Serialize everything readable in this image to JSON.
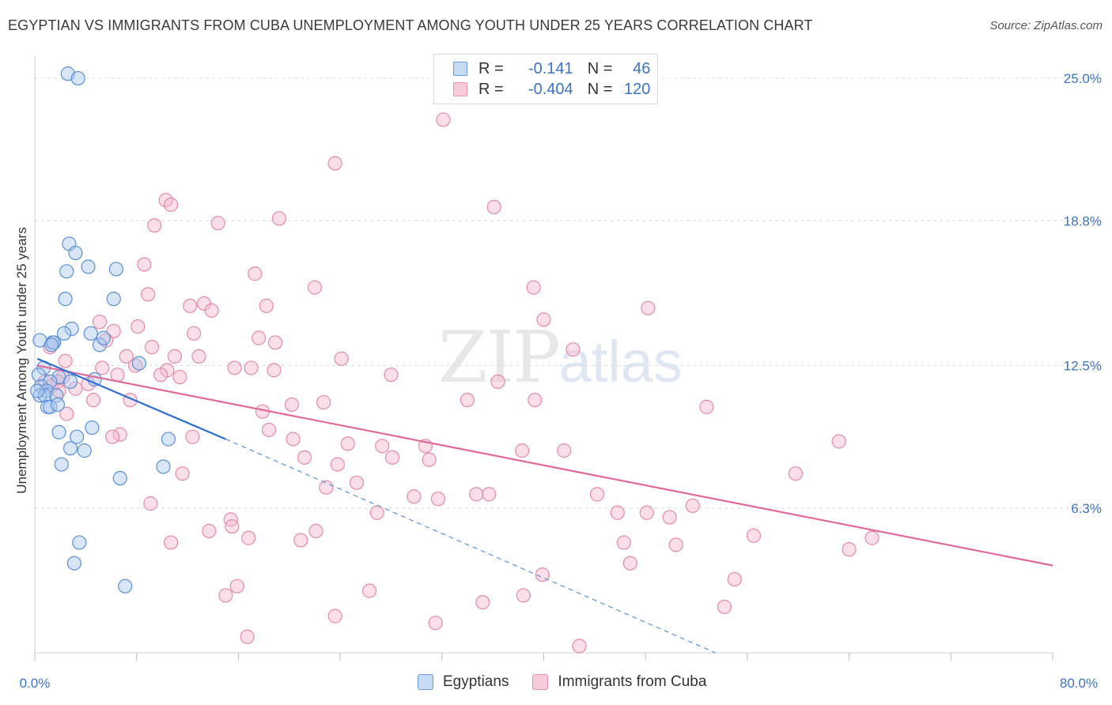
{
  "title": "EGYPTIAN VS IMMIGRANTS FROM CUBA UNEMPLOYMENT AMONG YOUTH UNDER 25 YEARS CORRELATION CHART",
  "source": "Source: ZipAtlas.com",
  "watermark": {
    "zip": "ZIP",
    "atlas": "atlas"
  },
  "legend": {
    "rows": [
      {
        "r_label": "R =",
        "r_value": "-0.141",
        "n_label": "N =",
        "n_value": "46"
      },
      {
        "r_label": "R =",
        "r_value": "-0.404",
        "n_label": "N =",
        "n_value": "120"
      }
    ]
  },
  "colors": {
    "blue_fill": "#a9c8f0",
    "blue_stroke": "#5b8fd6",
    "blue_line": "#2f6fd1",
    "pink_fill": "#f6b9cc",
    "pink_stroke": "#e58aa8",
    "pink_line": "#e0689a",
    "tick_label": "#3b74c4",
    "grid": "#dcdcdc"
  },
  "chart_data": {
    "type": "scatter",
    "title": "EGYPTIAN VS IMMIGRANTS FROM CUBA UNEMPLOYMENT AMONG YOUTH UNDER 25 YEARS CORRELATION CHART",
    "xlabel": "",
    "ylabel": "Unemployment Among Youth under 25 years",
    "xlim": [
      0,
      80
    ],
    "ylim": [
      0,
      26
    ],
    "x_tick_labels": [
      "0.0%",
      "80.0%"
    ],
    "y_ticks": [
      6.3,
      12.5,
      18.8,
      25.0
    ],
    "y_tick_labels": [
      "6.3%",
      "12.5%",
      "18.8%",
      "25.0%"
    ],
    "legend_position": "bottom-center",
    "series": [
      {
        "name": "Egyptians",
        "trend": {
          "x_start": 0.2,
          "y_start": 12.8,
          "x_solid_end": 15,
          "y_solid_end": 9.3,
          "x_dash_end": 53.5,
          "y_dash_end": 0
        },
        "points": [
          [
            2.6,
            25.2
          ],
          [
            3.4,
            25.0
          ],
          [
            2.7,
            17.8
          ],
          [
            3.2,
            17.4
          ],
          [
            2.5,
            16.6
          ],
          [
            4.2,
            16.8
          ],
          [
            6.4,
            16.7
          ],
          [
            2.4,
            15.4
          ],
          [
            6.2,
            15.4
          ],
          [
            2.9,
            14.1
          ],
          [
            2.3,
            13.9
          ],
          [
            4.4,
            13.9
          ],
          [
            0.4,
            13.6
          ],
          [
            1.4,
            13.5
          ],
          [
            1.5,
            13.5
          ],
          [
            1.3,
            13.4
          ],
          [
            5.1,
            13.4
          ],
          [
            5.4,
            13.7
          ],
          [
            8.2,
            12.6
          ],
          [
            0.7,
            12.4
          ],
          [
            0.3,
            12.1
          ],
          [
            1.9,
            12.0
          ],
          [
            1.2,
            11.8
          ],
          [
            2.8,
            11.8
          ],
          [
            4.7,
            11.9
          ],
          [
            0.5,
            11.6
          ],
          [
            0.9,
            11.4
          ],
          [
            0.4,
            11.2
          ],
          [
            0.8,
            11.2
          ],
          [
            1.7,
            11.2
          ],
          [
            0.2,
            11.4
          ],
          [
            1.0,
            10.7
          ],
          [
            1.2,
            10.7
          ],
          [
            1.8,
            10.8
          ],
          [
            1.9,
            9.6
          ],
          [
            4.5,
            9.8
          ],
          [
            3.3,
            9.4
          ],
          [
            10.5,
            9.3
          ],
          [
            2.8,
            8.9
          ],
          [
            3.9,
            8.8
          ],
          [
            2.1,
            8.2
          ],
          [
            10.1,
            8.1
          ],
          [
            6.7,
            7.6
          ],
          [
            3.5,
            4.8
          ],
          [
            3.1,
            3.9
          ],
          [
            7.1,
            2.9
          ]
        ]
      },
      {
        "name": "Immigrants from Cuba",
        "trend": {
          "x_start": 0.2,
          "y_start": 12.5,
          "x_end": 80,
          "y_end": 3.8
        },
        "points": [
          [
            32.1,
            23.2
          ],
          [
            23.6,
            21.3
          ],
          [
            10.3,
            19.7
          ],
          [
            10.7,
            19.5
          ],
          [
            36.1,
            19.4
          ],
          [
            9.4,
            18.6
          ],
          [
            14.4,
            18.7
          ],
          [
            19.2,
            18.9
          ],
          [
            8.6,
            16.9
          ],
          [
            17.3,
            16.5
          ],
          [
            22.0,
            15.9
          ],
          [
            39.2,
            15.9
          ],
          [
            48.2,
            15.0
          ],
          [
            12.2,
            15.1
          ],
          [
            13.3,
            15.2
          ],
          [
            13.9,
            14.9
          ],
          [
            18.2,
            15.1
          ],
          [
            40.0,
            14.5
          ],
          [
            5.1,
            14.4
          ],
          [
            8.1,
            14.2
          ],
          [
            6.2,
            14.0
          ],
          [
            12.5,
            13.9
          ],
          [
            5.6,
            13.6
          ],
          [
            17.6,
            13.7
          ],
          [
            18.9,
            13.5
          ],
          [
            1.2,
            13.3
          ],
          [
            9.2,
            13.3
          ],
          [
            42.3,
            13.2
          ],
          [
            7.2,
            12.9
          ],
          [
            11.0,
            12.9
          ],
          [
            12.9,
            12.9
          ],
          [
            24.1,
            12.8
          ],
          [
            2.4,
            12.7
          ],
          [
            10.4,
            12.3
          ],
          [
            17.0,
            12.4
          ],
          [
            18.8,
            12.3
          ],
          [
            7.9,
            12.5
          ],
          [
            5.3,
            12.4
          ],
          [
            6.5,
            12.1
          ],
          [
            9.9,
            12.1
          ],
          [
            11.4,
            12.0
          ],
          [
            15.7,
            12.4
          ],
          [
            28.0,
            12.1
          ],
          [
            2.2,
            12.0
          ],
          [
            1.8,
            11.8
          ],
          [
            0.8,
            11.8
          ],
          [
            1.3,
            11.6
          ],
          [
            4.2,
            11.7
          ],
          [
            36.4,
            11.8
          ],
          [
            1.9,
            11.4
          ],
          [
            3.2,
            11.5
          ],
          [
            4.6,
            11.0
          ],
          [
            7.5,
            11.0
          ],
          [
            22.7,
            10.9
          ],
          [
            34.0,
            11.0
          ],
          [
            39.3,
            11.0
          ],
          [
            20.2,
            10.8
          ],
          [
            17.9,
            10.5
          ],
          [
            52.8,
            10.7
          ],
          [
            2.5,
            10.4
          ],
          [
            18.4,
            9.7
          ],
          [
            6.7,
            9.5
          ],
          [
            6.1,
            9.4
          ],
          [
            12.4,
            9.4
          ],
          [
            20.3,
            9.3
          ],
          [
            24.6,
            9.1
          ],
          [
            27.3,
            9.0
          ],
          [
            30.7,
            9.0
          ],
          [
            38.3,
            8.8
          ],
          [
            41.6,
            8.8
          ],
          [
            63.2,
            9.2
          ],
          [
            21.2,
            8.5
          ],
          [
            28.1,
            8.5
          ],
          [
            31.0,
            8.4
          ],
          [
            23.8,
            8.2
          ],
          [
            11.6,
            7.8
          ],
          [
            59.8,
            7.8
          ],
          [
            25.3,
            7.4
          ],
          [
            22.9,
            7.2
          ],
          [
            34.7,
            6.9
          ],
          [
            35.7,
            6.9
          ],
          [
            29.8,
            6.8
          ],
          [
            31.7,
            6.7
          ],
          [
            44.2,
            6.9
          ],
          [
            9.1,
            6.5
          ],
          [
            51.7,
            6.4
          ],
          [
            26.9,
            6.1
          ],
          [
            45.8,
            6.1
          ],
          [
            48.1,
            6.1
          ],
          [
            49.9,
            5.9
          ],
          [
            15.4,
            5.8
          ],
          [
            15.5,
            5.5
          ],
          [
            13.7,
            5.3
          ],
          [
            22.1,
            5.3
          ],
          [
            56.5,
            5.1
          ],
          [
            65.8,
            5.0
          ],
          [
            16.8,
            5.0
          ],
          [
            20.9,
            4.9
          ],
          [
            10.7,
            4.8
          ],
          [
            46.3,
            4.8
          ],
          [
            50.4,
            4.7
          ],
          [
            64.0,
            4.5
          ],
          [
            46.8,
            3.9
          ],
          [
            39.9,
            3.4
          ],
          [
            55.0,
            3.2
          ],
          [
            15.9,
            2.9
          ],
          [
            26.3,
            2.7
          ],
          [
            15.0,
            2.5
          ],
          [
            38.4,
            2.5
          ],
          [
            35.2,
            2.2
          ],
          [
            54.2,
            2.0
          ],
          [
            23.6,
            1.6
          ],
          [
            31.5,
            1.3
          ],
          [
            16.7,
            0.7
          ],
          [
            42.8,
            0.3
          ],
          [
            8.9,
            15.6
          ]
        ]
      }
    ]
  },
  "bottom_legend": {
    "items": [
      {
        "label": "Egyptians"
      },
      {
        "label": "Immigrants from Cuba"
      }
    ]
  }
}
